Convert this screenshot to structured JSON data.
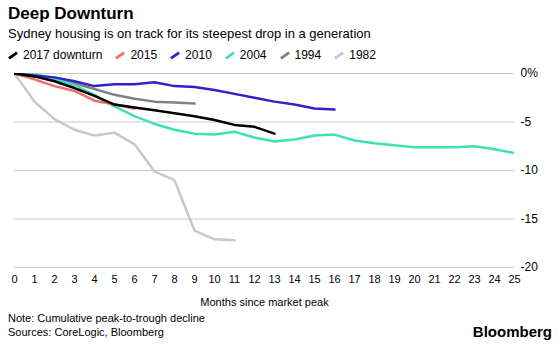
{
  "chart_data": {
    "type": "line",
    "title": "Deep Downturn",
    "subtitle": "Sydney housing is on track for its steepest drop in a generation",
    "x_label": "Months since market peak",
    "notes": [
      "Note: Cumulative peak-to-trough decline",
      "Sources: CoreLogic, Bloomberg"
    ],
    "logo": "Bloomberg",
    "legend": "top",
    "grid": true,
    "x": [
      0,
      1,
      2,
      3,
      4,
      5,
      6,
      7,
      8,
      9,
      10,
      11,
      12,
      13,
      14,
      15,
      16,
      17,
      18,
      19,
      20,
      21,
      22,
      23,
      24,
      25
    ],
    "xlim": [
      0,
      25
    ],
    "xticks": [
      0,
      1,
      2,
      3,
      4,
      5,
      6,
      7,
      8,
      9,
      10,
      11,
      12,
      13,
      14,
      15,
      16,
      17,
      18,
      19,
      20,
      21,
      22,
      23,
      24,
      25
    ],
    "ylim": [
      -20,
      0
    ],
    "yticks": [
      {
        "value": 0,
        "label": "0%"
      },
      -5,
      -10,
      -15,
      -20
    ],
    "series": [
      {
        "name": "2017 downturn",
        "color": "#000000",
        "values": [
          0,
          -0.3,
          -0.8,
          -1.5,
          -2.3,
          -3.2,
          -3.5,
          -3.8,
          -4.1,
          -4.4,
          -4.8,
          -5.3,
          -5.5,
          -6.2,
          null,
          null,
          null,
          null,
          null,
          null,
          null,
          null,
          null,
          null,
          null,
          null
        ]
      },
      {
        "name": "2015",
        "color": "#f26d6d",
        "values": [
          0,
          -0.6,
          -1.3,
          -1.8,
          -2.8,
          -3.2,
          -3.6,
          null,
          null,
          null,
          null,
          null,
          null,
          null,
          null,
          null,
          null,
          null,
          null,
          null,
          null,
          null,
          null,
          null,
          null,
          null
        ]
      },
      {
        "name": "2010",
        "color": "#2e22c8",
        "values": [
          0,
          -0.2,
          -0.4,
          -0.8,
          -1.3,
          -1.1,
          -1.1,
          -0.9,
          -1.3,
          -1.4,
          -1.7,
          -2.1,
          -2.5,
          -2.9,
          -3.2,
          -3.6,
          -3.7,
          null,
          null,
          null,
          null,
          null,
          null,
          null,
          null,
          null
        ]
      },
      {
        "name": "2004",
        "color": "#3ee0b8",
        "values": [
          0,
          -0.1,
          -0.5,
          -1.2,
          -2.2,
          -3.4,
          -4.4,
          -5.2,
          -5.8,
          -6.2,
          -6.3,
          -6.0,
          -6.6,
          -7.0,
          -6.8,
          -6.4,
          -6.3,
          -6.9,
          -7.2,
          -7.4,
          -7.6,
          -7.6,
          -7.6,
          -7.5,
          -7.8,
          -8.2
        ]
      },
      {
        "name": "1994",
        "color": "#808080",
        "values": [
          0,
          -0.3,
          -0.6,
          -1.0,
          -1.6,
          -2.2,
          -2.6,
          -2.9,
          -3.0,
          -3.1,
          null,
          null,
          null,
          null,
          null,
          null,
          null,
          null,
          null,
          null,
          null,
          null,
          null,
          null,
          null,
          null
        ]
      },
      {
        "name": "1982",
        "color": "#c8c8c8",
        "values": [
          0,
          -2.9,
          -4.7,
          -5.8,
          -6.4,
          -6.1,
          -7.3,
          -10.1,
          -11.0,
          -16.2,
          -17.1,
          -17.2,
          null,
          null,
          null,
          null,
          null,
          null,
          null,
          null,
          null,
          null,
          null,
          null,
          null,
          null
        ]
      }
    ]
  }
}
